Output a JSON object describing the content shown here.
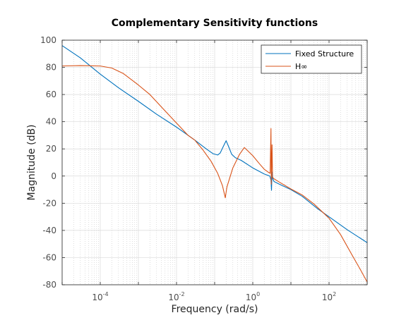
{
  "chart_data": {
    "type": "line",
    "title": "Complementary Sensitivity functions",
    "xlabel": "Frequency  (rad/s)",
    "ylabel": "Magnitude (dB)",
    "x_scale": "log",
    "xlim": [
      1e-05,
      1000
    ],
    "ylim": [
      -80,
      100
    ],
    "grid": true,
    "minor_grid": true,
    "legend_position": "top-right",
    "x_ticks": [
      {
        "base": "10",
        "exp": "-4",
        "value": 0.0001
      },
      {
        "base": "10",
        "exp": "-2",
        "value": 0.01
      },
      {
        "base": "10",
        "exp": "0",
        "value": 1
      },
      {
        "base": "10",
        "exp": "2",
        "value": 100
      }
    ],
    "y_ticks": [
      -80,
      -60,
      -40,
      -20,
      0,
      20,
      40,
      60,
      80,
      100
    ],
    "series": [
      {
        "name": "Fixed Structure",
        "color": "#0072bd",
        "points": [
          [
            1e-05,
            96
          ],
          [
            3e-05,
            87
          ],
          [
            0.0001,
            75
          ],
          [
            0.0003,
            65
          ],
          [
            0.001,
            55
          ],
          [
            0.003,
            45.5
          ],
          [
            0.01,
            36
          ],
          [
            0.03,
            26.5
          ],
          [
            0.06,
            20
          ],
          [
            0.09,
            16.5
          ],
          [
            0.12,
            15.5
          ],
          [
            0.14,
            17
          ],
          [
            0.17,
            22
          ],
          [
            0.2,
            26
          ],
          [
            0.23,
            22
          ],
          [
            0.28,
            16
          ],
          [
            0.35,
            13.5
          ],
          [
            0.5,
            11.5
          ],
          [
            1,
            6
          ],
          [
            2,
            1.5
          ],
          [
            2.8,
            0
          ],
          [
            3,
            -3
          ],
          [
            3.1,
            -10.5
          ],
          [
            3.2,
            3
          ],
          [
            3.35,
            -2
          ],
          [
            3.6,
            -4
          ],
          [
            5,
            -6
          ],
          [
            10,
            -10
          ],
          [
            20,
            -15
          ],
          [
            50,
            -24
          ],
          [
            100,
            -30
          ],
          [
            300,
            -39.5
          ],
          [
            1000,
            -49
          ]
        ]
      },
      {
        "name": "H∞",
        "color": "#d95319",
        "points": [
          [
            1e-05,
            81
          ],
          [
            3e-05,
            81.3
          ],
          [
            0.0001,
            81
          ],
          [
            0.0002,
            79.5
          ],
          [
            0.0004,
            75.5
          ],
          [
            0.001,
            67
          ],
          [
            0.002,
            60
          ],
          [
            0.005,
            48
          ],
          [
            0.01,
            39
          ],
          [
            0.02,
            30
          ],
          [
            0.03,
            26.5
          ],
          [
            0.05,
            19
          ],
          [
            0.08,
            11
          ],
          [
            0.12,
            2
          ],
          [
            0.16,
            -7
          ],
          [
            0.19,
            -16
          ],
          [
            0.21,
            -8
          ],
          [
            0.3,
            6
          ],
          [
            0.45,
            16
          ],
          [
            0.6,
            21
          ],
          [
            1,
            15
          ],
          [
            1.5,
            9
          ],
          [
            2,
            5
          ],
          [
            2.5,
            3
          ],
          [
            2.85,
            2
          ],
          [
            3,
            35
          ],
          [
            3.05,
            -6
          ],
          [
            3.2,
            23
          ],
          [
            3.3,
            -1
          ],
          [
            3.6,
            -2
          ],
          [
            5,
            -4.5
          ],
          [
            10,
            -9.5
          ],
          [
            20,
            -14
          ],
          [
            40,
            -20.5
          ],
          [
            100,
            -31
          ],
          [
            200,
            -43
          ],
          [
            400,
            -58
          ],
          [
            700,
            -70
          ],
          [
            1000,
            -78
          ]
        ]
      }
    ]
  }
}
